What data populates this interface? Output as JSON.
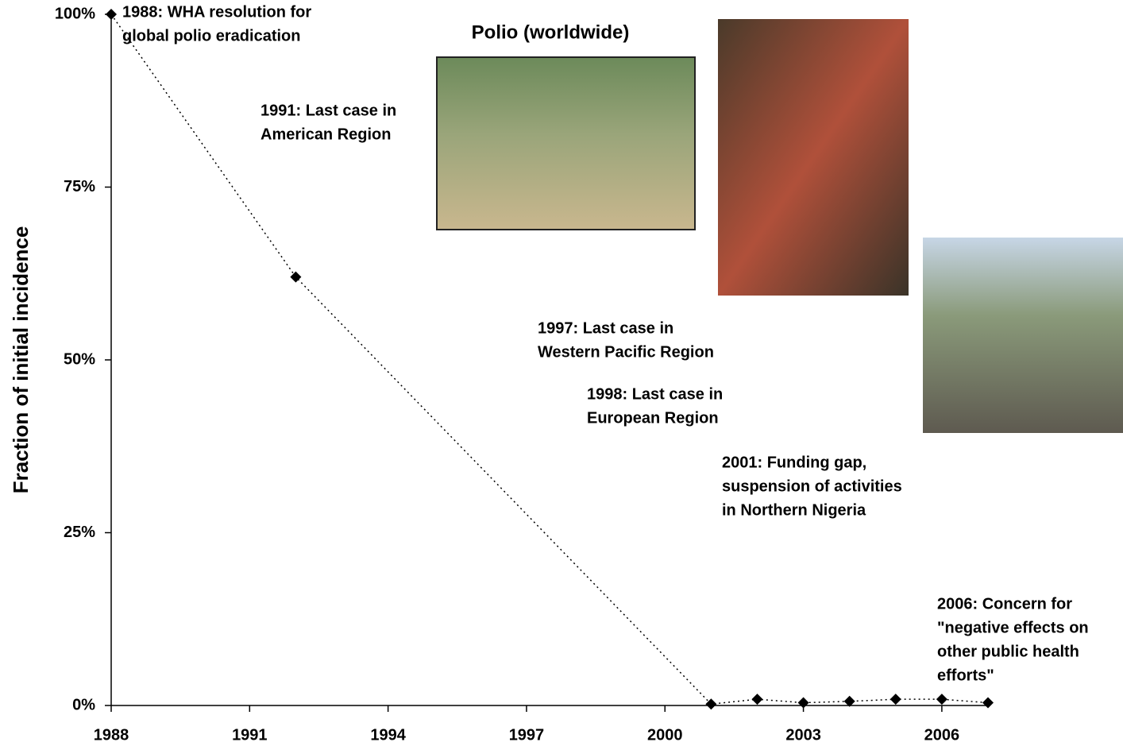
{
  "chart_data": {
    "type": "line",
    "title": "Polio (worldwide)",
    "y_label": "Fraction of initial incidence",
    "x": [
      1988,
      1992,
      2001,
      2002,
      2003,
      2004,
      2005,
      2006,
      2007
    ],
    "values": [
      100,
      62,
      0.2,
      0.9,
      0.4,
      0.6,
      0.9,
      0.9,
      0.4
    ],
    "color": "#000000",
    "xlim": [
      1988,
      2007
    ],
    "xticks": [
      1988,
      1991,
      1994,
      1997,
      2000,
      2003,
      2006
    ],
    "ylim": [
      0,
      100
    ],
    "yticks": [
      {
        "value": 0,
        "label": "0%"
      },
      {
        "value": 25,
        "label": "25%"
      },
      {
        "value": 50,
        "label": "50%"
      },
      {
        "value": 75,
        "label": "75%"
      },
      {
        "value": 100,
        "label": "100%"
      }
    ],
    "annotations": [
      [
        "1988: WHA resolution for",
        "global polio eradication"
      ],
      [
        "1991: Last case in",
        "American Region"
      ],
      [
        "1997: Last case in",
        "Western Pacific Region"
      ],
      [
        "1998: Last case in",
        "European Region"
      ],
      [
        "2001: Funding gap,",
        "suspension of activities",
        "in Northern Nigeria"
      ],
      [
        "2006: Concern for",
        "\"negative effects on",
        "other public health",
        "efforts\""
      ]
    ]
  }
}
